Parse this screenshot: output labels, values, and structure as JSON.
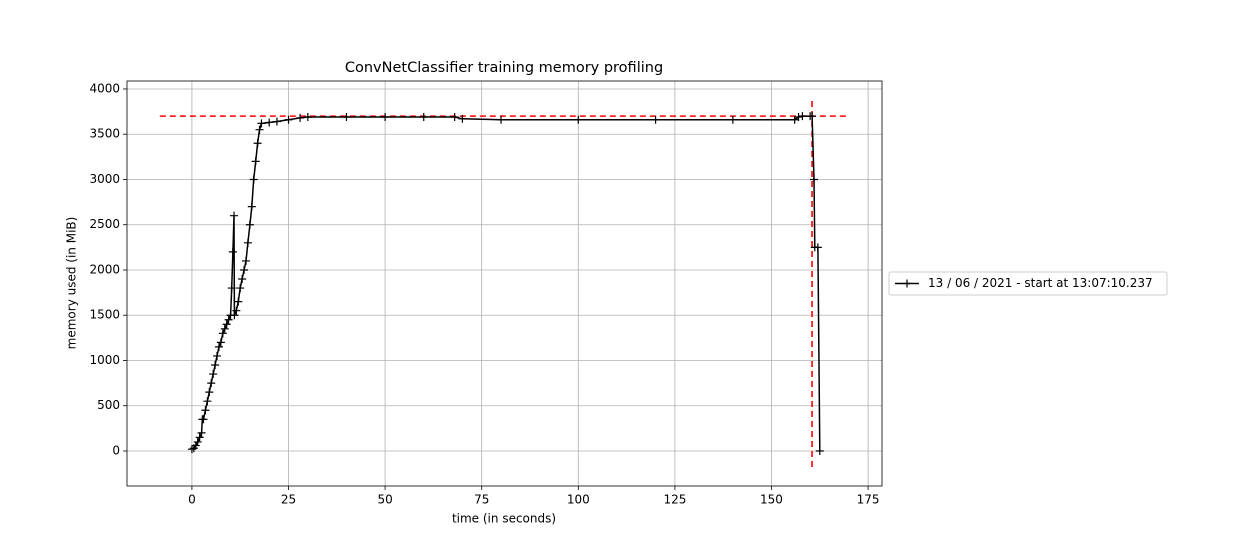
{
  "chart_data": {
    "type": "line",
    "title": "ConvNetClassifier training memory profiling",
    "x_label": "time (in seconds)",
    "y_label": "memory used (in MiB)",
    "x": [
      0,
      0.5,
      1,
      1.5,
      2,
      2.5,
      2.7,
      3,
      3.5,
      4,
      4.5,
      5,
      5.5,
      6,
      6.5,
      7,
      7.5,
      8,
      8.5,
      9,
      9.5,
      10,
      10.3,
      10.6,
      10.9,
      11,
      11.5,
      12,
      12.5,
      13,
      13.5,
      14,
      14.5,
      15,
      15.5,
      16,
      16.5,
      17,
      17.5,
      18,
      20,
      22,
      25,
      28,
      30,
      40,
      50,
      60,
      68,
      70,
      80,
      100,
      120,
      140,
      156,
      157,
      158,
      160,
      160.5,
      161,
      161.2,
      162,
      162.5
    ],
    "series": [
      {
        "name": "13 / 06 / 2021 - start at 13:07:10.237",
        "color": "#000000",
        "values": [
          20,
          30,
          60,
          100,
          150,
          200,
          350,
          350,
          450,
          550,
          650,
          750,
          850,
          950,
          1050,
          1150,
          1200,
          1300,
          1350,
          1400,
          1450,
          1500,
          1800,
          2200,
          2600,
          1500,
          1550,
          1650,
          1800,
          1900,
          2000,
          2100,
          2300,
          2500,
          2700,
          3000,
          3200,
          3400,
          3550,
          3620,
          3630,
          3640,
          3660,
          3680,
          3690,
          3690,
          3690,
          3690,
          3690,
          3670,
          3660,
          3660,
          3660,
          3660,
          3660,
          3690,
          3700,
          3700,
          3700,
          3000,
          2250,
          2250,
          0
        ]
      }
    ],
    "markers": [
      {
        "kind": "hline",
        "y": 3700,
        "from": -8.3,
        "to": 169.8,
        "color": "#ff0000"
      },
      {
        "kind": "vline",
        "x": 160.5,
        "from": -177,
        "to": 3890,
        "color": "#ff0000"
      }
    ],
    "xlim": [
      -16.8,
      178.6
    ],
    "ylim": [
      -387,
      4088
    ],
    "xticks": [
      0,
      25,
      50,
      75,
      100,
      125,
      150,
      175
    ],
    "yticks": [
      0,
      500,
      1000,
      1500,
      2000,
      2500,
      3000,
      3500,
      4000
    ],
    "grid": true,
    "legend": "outside right"
  }
}
